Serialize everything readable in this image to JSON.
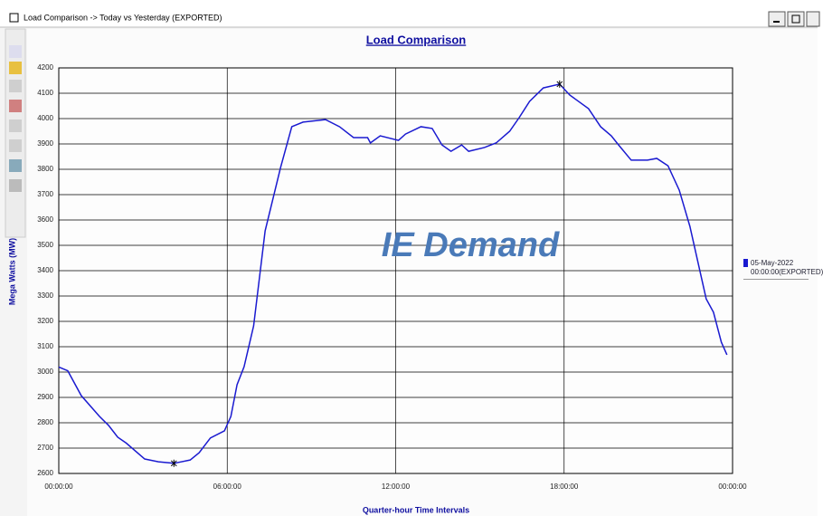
{
  "window": {
    "title": "Load Comparison -> Today vs Yesterday (EXPORTED)"
  },
  "chart_data": {
    "type": "line",
    "title": "Load Comparison",
    "x_label": "Quarter-hour Time Intervals",
    "y_label": "Mega Watts (MW)",
    "annotation": "IE Demand",
    "xlim": [
      0,
      24
    ],
    "xticks": [
      {
        "value": 0,
        "label": "00:00:00"
      },
      {
        "value": 6,
        "label": "06:00:00"
      },
      {
        "value": 12,
        "label": "12:00:00"
      },
      {
        "value": 18,
        "label": "18:00:00"
      },
      {
        "value": 24,
        "label": "00:00:00"
      }
    ],
    "ylim": [
      2600,
      4200
    ],
    "yticks": [
      2600,
      2700,
      2800,
      2900,
      3000,
      3100,
      3200,
      3300,
      3400,
      3500,
      3600,
      3700,
      3800,
      3900,
      4000,
      4100,
      4200
    ],
    "grid": true,
    "legend": "right",
    "x": [
      0,
      0.32,
      0.8,
      1.45,
      1.77,
      2.1,
      2.4,
      3.06,
      3.55,
      4.1,
      4.68,
      5.0,
      5.4,
      5.9,
      6.13,
      6.35,
      6.6,
      6.94,
      7.35,
      7.9,
      8.3,
      8.7,
      9.5,
      10.0,
      10.5,
      11.0,
      11.1,
      11.45,
      12.1,
      12.35,
      12.9,
      13.3,
      13.65,
      13.97,
      14.35,
      14.6,
      15.16,
      15.58,
      16.06,
      16.4,
      16.77,
      17.26,
      17.84,
      18.2,
      18.87,
      19.3,
      19.68,
      19.94,
      20.39,
      20.97,
      21.3,
      21.7,
      22.1,
      22.48,
      23.06,
      23.32,
      23.6,
      23.8
    ],
    "series": [
      {
        "name": "05-May-2022 00:00:00(EXPORTED)",
        "color": "#1a1ad0",
        "values": [
          3020,
          3005,
          2907,
          2825,
          2790,
          2743,
          2720,
          2657,
          2646,
          2640,
          2653,
          2682,
          2740,
          2768,
          2825,
          2950,
          3021,
          3182,
          3557,
          3807,
          3968,
          3986,
          3996,
          3968,
          3925,
          3925,
          3904,
          3932,
          3914,
          3939,
          3968,
          3961,
          3896,
          3871,
          3896,
          3871,
          3886,
          3904,
          3950,
          4004,
          4068,
          4121,
          4136,
          4093,
          4039,
          3968,
          3932,
          3896,
          3836,
          3836,
          3843,
          3814,
          3718,
          3575,
          3289,
          3236,
          3118,
          3068
        ]
      }
    ]
  }
}
